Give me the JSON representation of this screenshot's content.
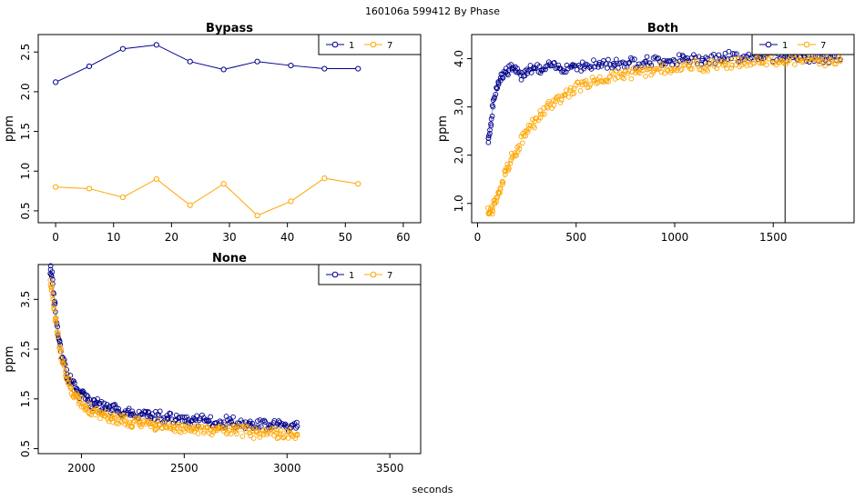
{
  "figure": {
    "suptitle": "160106a   599412  By Phase",
    "xlabel": "seconds"
  },
  "colors": {
    "series1": "#00008B",
    "series7": "#FFA500",
    "axis": "#000000"
  },
  "chart_data": [
    {
      "type": "line",
      "title": "Bypass",
      "xlabel": "",
      "ylabel": "ppm",
      "xlim": [
        -3,
        63
      ],
      "ylim": [
        0.35,
        2.72
      ],
      "xticks": [
        0,
        10,
        20,
        30,
        40,
        50,
        60
      ],
      "yticks": [
        0.5,
        1.0,
        1.5,
        2.0,
        2.5
      ],
      "ytick_labels": [
        "0.5",
        "1.0",
        "1.5",
        "2.0",
        "2.5"
      ],
      "legend": {
        "position": "top-right",
        "entries": [
          "1",
          "7"
        ]
      },
      "series": [
        {
          "name": "1",
          "color": "#00008B",
          "style": "line+markers",
          "x": [
            0,
            5.8,
            11.6,
            17.4,
            23.2,
            29,
            34.8,
            40.6,
            46.4,
            52.2
          ],
          "y": [
            2.12,
            2.32,
            2.54,
            2.59,
            2.38,
            2.28,
            2.38,
            2.33,
            2.29,
            2.29
          ]
        },
        {
          "name": "7",
          "color": "#FFA500",
          "style": "line+markers",
          "x": [
            0,
            5.8,
            11.6,
            17.4,
            23.2,
            29,
            34.8,
            40.6,
            46.4,
            52.2
          ],
          "y": [
            0.8,
            0.78,
            0.67,
            0.9,
            0.57,
            0.84,
            0.44,
            0.62,
            0.91,
            0.84
          ]
        }
      ]
    },
    {
      "type": "scatter",
      "title": "Both",
      "xlabel": "",
      "ylabel": "ppm",
      "xlim": [
        -30,
        1910
      ],
      "ylim": [
        0.6,
        4.5
      ],
      "xticks": [
        0,
        500,
        1000,
        1500
      ],
      "yticks": [
        1.0,
        2.0,
        3.0,
        4.0
      ],
      "ytick_labels": [
        "1.0",
        "2.0",
        "3.0",
        "4.0"
      ],
      "vline": 1560,
      "legend": {
        "position": "top-right",
        "entries": [
          "1",
          "7"
        ]
      },
      "series": [
        {
          "name": "1",
          "color": "#00008B",
          "x": [
            55,
            62,
            70,
            78,
            86,
            95,
            105,
            116,
            128,
            142,
            158,
            176,
            196,
            220,
            250,
            285,
            325,
            370,
            420,
            480,
            545,
            615,
            690,
            770,
            855,
            945,
            1040,
            1140,
            1245,
            1350,
            1455,
            1560,
            1660,
            1750,
            1840
          ],
          "y": [
            2.35,
            2.45,
            2.75,
            3.0,
            3.2,
            3.4,
            3.52,
            3.6,
            3.68,
            3.72,
            3.76,
            3.8,
            3.72,
            3.65,
            3.78,
            3.82,
            3.75,
            3.85,
            3.8,
            3.86,
            3.84,
            3.88,
            3.9,
            3.92,
            3.94,
            3.96,
            3.98,
            4.0,
            4.02,
            4.05,
            4.08,
            4.05,
            4.02,
            4.0,
            3.98
          ]
        },
        {
          "name": "7",
          "color": "#FFA500",
          "x": [
            55,
            65,
            75,
            85,
            95,
            105,
            115,
            125,
            140,
            155,
            170,
            190,
            210,
            235,
            260,
            290,
            320,
            355,
            395,
            440,
            490,
            545,
            605,
            670,
            740,
            815,
            895,
            980,
            1070,
            1160,
            1255,
            1350,
            1445,
            1540,
            1635,
            1730,
            1840
          ],
          "y": [
            0.8,
            0.82,
            0.9,
            1.0,
            1.12,
            1.22,
            1.32,
            1.45,
            1.6,
            1.75,
            1.9,
            2.05,
            2.2,
            2.4,
            2.55,
            2.7,
            2.85,
            2.98,
            3.12,
            3.25,
            3.38,
            3.48,
            3.56,
            3.62,
            3.68,
            3.72,
            3.76,
            3.8,
            3.84,
            3.87,
            3.9,
            3.92,
            3.94,
            3.96,
            3.97,
            3.96,
            3.95
          ]
        }
      ]
    },
    {
      "type": "scatter",
      "title": "None",
      "xlabel": "seconds",
      "ylabel": "ppm",
      "xlim": [
        1790,
        3650
      ],
      "ylim": [
        0.4,
        4.2
      ],
      "xticks": [
        2000,
        2500,
        3000,
        3500
      ],
      "yticks": [
        0.5,
        1.5,
        2.5,
        3.5
      ],
      "ytick_labels": [
        "0.5",
        "1.5",
        "2.5",
        "3.5"
      ],
      "legend": {
        "position": "top-right",
        "entries": [
          "1",
          "7"
        ]
      },
      "series": [
        {
          "name": "1",
          "color": "#00008B",
          "x": [
            1850,
            1860,
            1870,
            1880,
            1890,
            1900,
            1915,
            1930,
            1950,
            1975,
            2000,
            2030,
            2070,
            2120,
            2180,
            2250,
            2330,
            2420,
            2520,
            2620,
            2720,
            2820,
            2920,
            3000,
            3050
          ],
          "y": [
            4.1,
            3.9,
            3.4,
            3.0,
            2.7,
            2.45,
            2.2,
            2.0,
            1.85,
            1.7,
            1.58,
            1.48,
            1.4,
            1.32,
            1.25,
            1.2,
            1.16,
            1.12,
            1.08,
            1.05,
            1.02,
            1.0,
            0.98,
            0.96,
            0.95
          ]
        },
        {
          "name": "7",
          "color": "#FFA500",
          "x": [
            1850,
            1862,
            1874,
            1886,
            1898,
            1912,
            1928,
            1945,
            1965,
            1990,
            2020,
            2055,
            2100,
            2150,
            2210,
            2280,
            2360,
            2450,
            2550,
            2650,
            2750,
            2850,
            2950,
            3020,
            3050
          ],
          "y": [
            3.8,
            3.5,
            3.1,
            2.75,
            2.45,
            2.2,
            1.95,
            1.75,
            1.6,
            1.45,
            1.35,
            1.25,
            1.18,
            1.12,
            1.06,
            1.01,
            0.97,
            0.93,
            0.9,
            0.87,
            0.85,
            0.83,
            0.81,
            0.8,
            0.79
          ]
        }
      ]
    }
  ]
}
